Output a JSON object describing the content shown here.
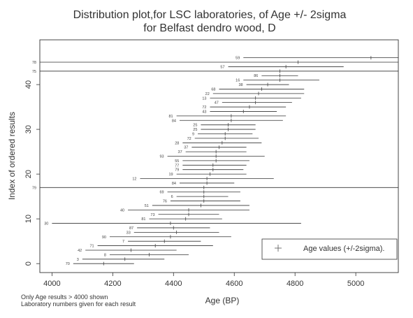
{
  "chart_data": {
    "type": "scatter",
    "title_line1": "Distribution plot,for LSC laboratories, of Age +/- 2sigma",
    "title_line2": "for Belfast dendro wood, D",
    "xlabel": "Age (BP)",
    "ylabel": "Index of ordered results",
    "xlim": [
      3960,
      5140
    ],
    "ylim": [
      -2,
      50
    ],
    "xticks": [
      4000,
      4200,
      4400,
      4600,
      4800,
      5000
    ],
    "yticks": [
      0,
      10,
      20,
      30,
      40
    ],
    "legend": {
      "label": "Age values (+/-2sigma).",
      "position": "bottom-right",
      "marker": "+"
    },
    "notes": [
      "Only Age results > 4000 shown",
      "Laboratory numbers given for each result"
    ],
    "series": [
      {
        "points": [
          {
            "lab": "70",
            "age": 4170,
            "low": 4070,
            "high": 4270
          },
          {
            "lab": "3",
            "age": 4240,
            "low": 4100,
            "high": 4370
          },
          {
            "lab": "8",
            "age": 4320,
            "low": 4190,
            "high": 4450
          },
          {
            "lab": "42",
            "age": 4260,
            "low": 4110,
            "high": 4410
          },
          {
            "lab": "71",
            "age": 4340,
            "low": 4150,
            "high": 4530
          },
          {
            "lab": "7",
            "age": 4370,
            "low": 4250,
            "high": 4490
          },
          {
            "lab": "90",
            "age": 4390,
            "low": 4190,
            "high": 4590
          },
          {
            "lab": "33",
            "age": 4410,
            "low": 4270,
            "high": 4550
          },
          {
            "lab": "87",
            "age": 4400,
            "low": 4280,
            "high": 4520
          },
          {
            "lab": "30",
            "age": 4390,
            "low": 4000,
            "high": 4820
          },
          {
            "lab": "81",
            "age": 4440,
            "low": 4320,
            "high": 4560
          },
          {
            "lab": "73",
            "age": 4450,
            "low": 4350,
            "high": 4550
          },
          {
            "lab": "40",
            "age": 4450,
            "low": 4250,
            "high": 4650
          },
          {
            "lab": "51",
            "age": 4490,
            "low": 4330,
            "high": 4650
          },
          {
            "lab": "76",
            "age": 4500,
            "low": 4390,
            "high": 4620
          },
          {
            "lab": "6",
            "age": 4500,
            "low": 4410,
            "high": 4580
          },
          {
            "lab": "69",
            "age": 4500,
            "low": 4380,
            "high": 4620
          },
          {
            "lab": "79",
            "age": 4500,
            "low": 3960,
            "high": 5140
          },
          {
            "lab": "84",
            "age": 4510,
            "low": 4420,
            "high": 4600
          },
          {
            "lab": "12",
            "age": 4510,
            "low": 4290,
            "high": 4730
          },
          {
            "lab": "19",
            "age": 4520,
            "low": 4410,
            "high": 4640
          },
          {
            "lab": "79",
            "age": 4530,
            "low": 4430,
            "high": 4630
          },
          {
            "lab": "77",
            "age": 4530,
            "low": 4430,
            "high": 4640
          },
          {
            "lab": "55",
            "age": 4540,
            "low": 4430,
            "high": 4650
          },
          {
            "lab": "93",
            "age": 4540,
            "low": 4380,
            "high": 4700
          },
          {
            "lab": "37",
            "age": 4540,
            "low": 4440,
            "high": 4640
          },
          {
            "lab": "37",
            "age": 4550,
            "low": 4460,
            "high": 4640
          },
          {
            "lab": "28",
            "age": 4560,
            "low": 4430,
            "high": 4690
          },
          {
            "lab": "72",
            "age": 4570,
            "low": 4470,
            "high": 4680
          },
          {
            "lab": "9",
            "age": 4570,
            "low": 4480,
            "high": 4660
          },
          {
            "lab": "25",
            "age": 4580,
            "low": 4490,
            "high": 4670
          },
          {
            "lab": "25",
            "age": 4580,
            "low": 4490,
            "high": 4670
          },
          {
            "lab": "84",
            "age": 4590,
            "low": 4420,
            "high": 4760
          },
          {
            "lab": "81",
            "age": 4590,
            "low": 4410,
            "high": 4770
          },
          {
            "lab": "43",
            "age": 4630,
            "low": 4520,
            "high": 4740
          },
          {
            "lab": "72",
            "age": 4650,
            "low": 4520,
            "high": 4770
          },
          {
            "lab": "47",
            "age": 4670,
            "low": 4560,
            "high": 4790
          },
          {
            "lab": "13",
            "age": 4670,
            "low": 4520,
            "high": 4820
          },
          {
            "lab": "22",
            "age": 4680,
            "low": 4530,
            "high": 4830
          },
          {
            "lab": "68",
            "age": 4690,
            "low": 4550,
            "high": 4830
          },
          {
            "lab": "38",
            "age": 4710,
            "low": 4640,
            "high": 4780
          },
          {
            "lab": "16",
            "age": 4750,
            "low": 4630,
            "high": 4880
          },
          {
            "lab": "86",
            "age": 4750,
            "low": 4690,
            "high": 4810
          },
          {
            "lab": "75",
            "age": 4750,
            "low": 3960,
            "high": 5140
          },
          {
            "lab": "57",
            "age": 4770,
            "low": 4580,
            "high": 4960
          },
          {
            "lab": "78",
            "age": 4810,
            "low": 3960,
            "high": 5140
          },
          {
            "lab": "59",
            "age": 5050,
            "low": 4630,
            "high": 5140
          }
        ]
      }
    ]
  }
}
